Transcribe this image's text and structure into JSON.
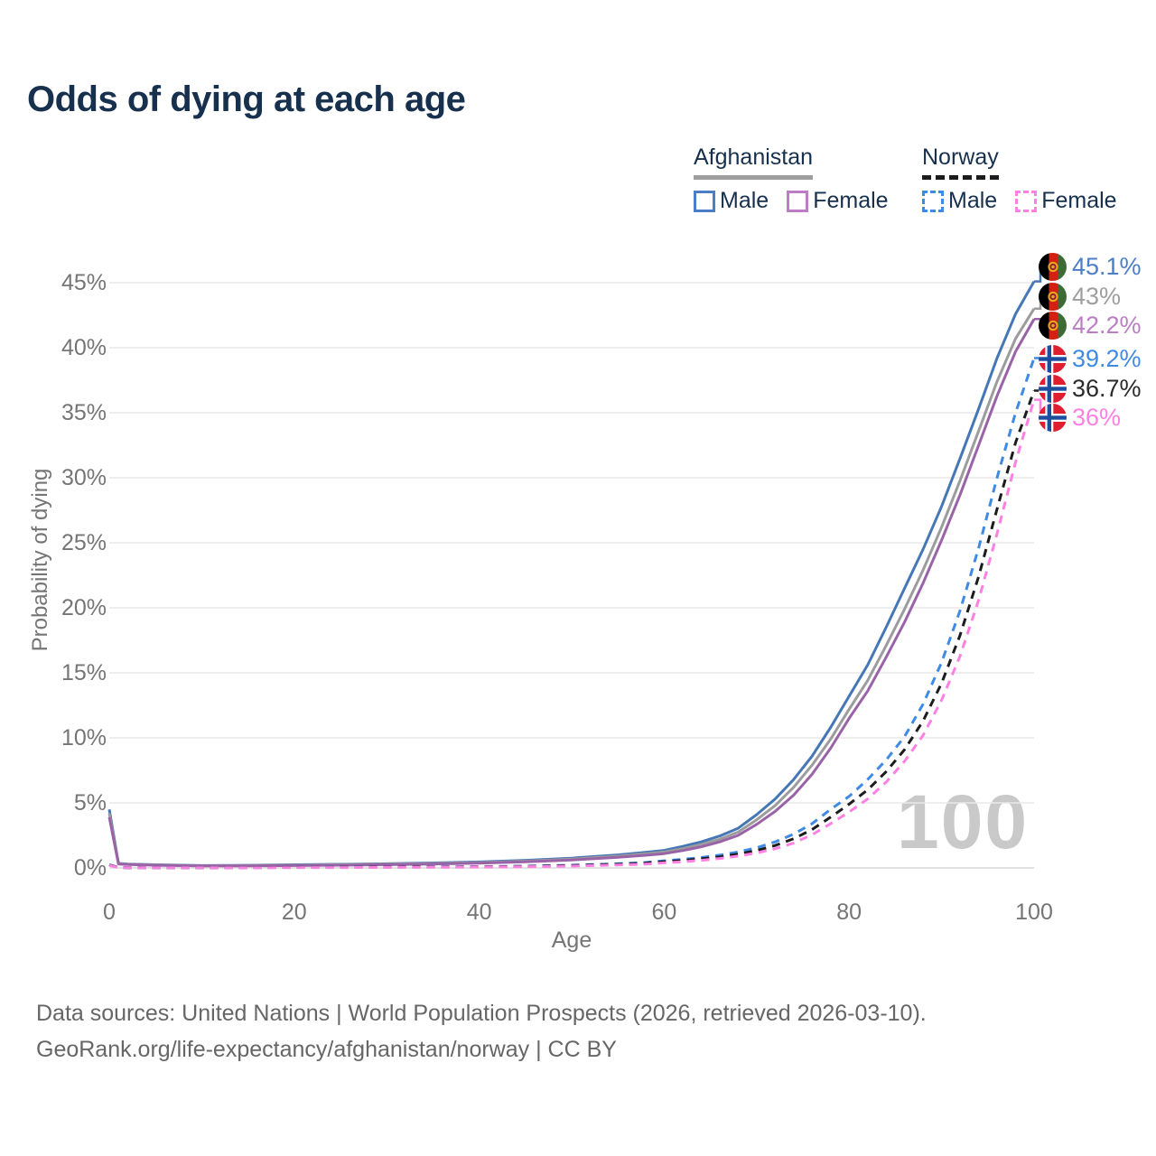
{
  "title": "Odds of dying at each age",
  "legend": {
    "afghanistan": {
      "label": "Afghanistan",
      "male": "Male",
      "female": "Female"
    },
    "norway": {
      "label": "Norway",
      "male": "Male",
      "female": "Female"
    }
  },
  "colors": {
    "title_text": "#16304d",
    "axis_text": "#757575",
    "gridline": "#e9e9e9",
    "baseline": "#d9d9d9",
    "watermark": "#c9c9c9",
    "afghanistan_underline": "#9e9e9e",
    "norway_underline": "#1c1c1c"
  },
  "watermark": "100",
  "axes": {
    "ylabel": "Probability of dying",
    "xlabel": "Age"
  },
  "chart_data": {
    "type": "line",
    "title": "Odds of dying at each age",
    "xlabel": "Age",
    "ylabel": "Probability of dying",
    "xlim": [
      0,
      100
    ],
    "ylim": [
      0,
      46
    ],
    "grid": "horizontal",
    "legend_position": "top-right",
    "watermark": "100",
    "x_tick_labels": [
      "0",
      "20",
      "40",
      "60",
      "80",
      "100"
    ],
    "x_tick_values": [
      0,
      20,
      40,
      60,
      80,
      100
    ],
    "y_tick_labels": [
      "0%",
      "5%",
      "10%",
      "15%",
      "20%",
      "25%",
      "30%",
      "35%",
      "40%",
      "45%"
    ],
    "y_tick_values": [
      0,
      5,
      10,
      15,
      20,
      25,
      30,
      35,
      40,
      45
    ],
    "ages": [
      0,
      1,
      2,
      3,
      4,
      5,
      10,
      15,
      20,
      25,
      30,
      35,
      40,
      45,
      50,
      55,
      58,
      60,
      62,
      64,
      66,
      68,
      70,
      72,
      74,
      76,
      78,
      80,
      82,
      84,
      86,
      88,
      90,
      92,
      94,
      96,
      98,
      100
    ],
    "series": [
      {
        "name": "Afghanistan Male",
        "country": "Afghanistan",
        "sex": "male",
        "style": "solid",
        "color": "#4577b6",
        "label_color": "#4b7ec6",
        "end_label": "45.1%",
        "end_value": 45.1,
        "values": [
          4.5,
          0.35,
          0.3,
          0.28,
          0.26,
          0.24,
          0.18,
          0.2,
          0.24,
          0.28,
          0.32,
          0.38,
          0.46,
          0.58,
          0.75,
          1.0,
          1.2,
          1.35,
          1.65,
          2.0,
          2.45,
          3.05,
          4.1,
          5.3,
          6.8,
          8.6,
          10.8,
          13.2,
          15.6,
          18.5,
          21.5,
          24.5,
          27.8,
          31.5,
          35.3,
          39.2,
          42.6,
          45.1
        ]
      },
      {
        "name": "Afghanistan Both sexes",
        "country": "Afghanistan",
        "sex": "both",
        "style": "solid",
        "color": "#9c9c9c",
        "label_color": "#9e9e9e",
        "end_label": "43%",
        "end_value": 43,
        "values": [
          4.2,
          0.33,
          0.28,
          0.26,
          0.24,
          0.22,
          0.16,
          0.18,
          0.21,
          0.25,
          0.29,
          0.34,
          0.41,
          0.52,
          0.68,
          0.9,
          1.08,
          1.22,
          1.48,
          1.8,
          2.2,
          2.75,
          3.7,
          4.8,
          6.2,
          7.9,
          9.9,
          12.2,
          14.4,
          17.1,
          19.9,
          22.9,
          26.2,
          29.8,
          33.6,
          37.4,
          40.7,
          43.0
        ]
      },
      {
        "name": "Afghanistan Female",
        "country": "Afghanistan",
        "sex": "female",
        "style": "solid",
        "color": "#9a63a8",
        "label_color": "#bb7ec4",
        "end_label": "42.2%",
        "end_value": 42.2,
        "values": [
          3.9,
          0.3,
          0.26,
          0.24,
          0.22,
          0.2,
          0.15,
          0.16,
          0.18,
          0.21,
          0.25,
          0.3,
          0.37,
          0.47,
          0.61,
          0.81,
          0.97,
          1.1,
          1.33,
          1.62,
          2.0,
          2.5,
          3.35,
          4.35,
          5.6,
          7.2,
          9.2,
          11.5,
          13.6,
          16.2,
          18.9,
          21.9,
          25.2,
          28.7,
          32.5,
          36.3,
          39.7,
          42.2
        ]
      },
      {
        "name": "Norway Male",
        "country": "Norway",
        "sex": "male",
        "style": "dashed",
        "color": "#3f8ae4",
        "label_color": "#3f8ae4",
        "end_label": "39.2%",
        "end_value": 39.2,
        "values": [
          0.25,
          0.03,
          0.02,
          0.02,
          0.01,
          0.01,
          0.01,
          0.02,
          0.05,
          0.06,
          0.07,
          0.08,
          0.1,
          0.14,
          0.21,
          0.32,
          0.42,
          0.55,
          0.66,
          0.8,
          0.98,
          1.22,
          1.55,
          2.0,
          2.6,
          3.4,
          4.5,
          5.5,
          6.8,
          8.3,
          10.1,
          12.6,
          15.8,
          19.8,
          24.6,
          30.0,
          35.0,
          39.2
        ]
      },
      {
        "name": "Norway Both sexes",
        "country": "Norway",
        "sex": "both",
        "style": "dashed",
        "color": "#1c1c1c",
        "label_color": "#2b2b2b",
        "end_label": "36.7%",
        "end_value": 36.7,
        "values": [
          0.22,
          0.03,
          0.02,
          0.02,
          0.01,
          0.01,
          0.01,
          0.02,
          0.04,
          0.05,
          0.06,
          0.07,
          0.09,
          0.12,
          0.18,
          0.28,
          0.37,
          0.48,
          0.57,
          0.7,
          0.85,
          1.06,
          1.34,
          1.72,
          2.24,
          2.95,
          3.9,
          4.9,
          6.0,
          7.4,
          9.1,
          11.3,
          14.2,
          17.9,
          22.4,
          27.6,
          32.7,
          36.7
        ]
      },
      {
        "name": "Norway Female",
        "country": "Norway",
        "sex": "female",
        "style": "dashed",
        "color": "#ff80e3",
        "label_color": "#ff80e3",
        "end_label": "36%",
        "end_value": 36,
        "values": [
          0.2,
          0.02,
          0.02,
          0.01,
          0.01,
          0.01,
          0.01,
          0.01,
          0.02,
          0.03,
          0.04,
          0.05,
          0.07,
          0.09,
          0.14,
          0.22,
          0.29,
          0.39,
          0.47,
          0.58,
          0.72,
          0.91,
          1.15,
          1.47,
          1.92,
          2.55,
          3.4,
          4.3,
          5.3,
          6.6,
          8.2,
          10.2,
          12.9,
          16.3,
          20.6,
          25.7,
          31.2,
          36.0
        ]
      }
    ]
  },
  "footer": {
    "line1": "Data sources: United Nations | World Population Prospects (2026, retrieved 2026-03-10).",
    "line2": "GeoRank.org/life-expectancy/afghanistan/norway | CC BY"
  }
}
